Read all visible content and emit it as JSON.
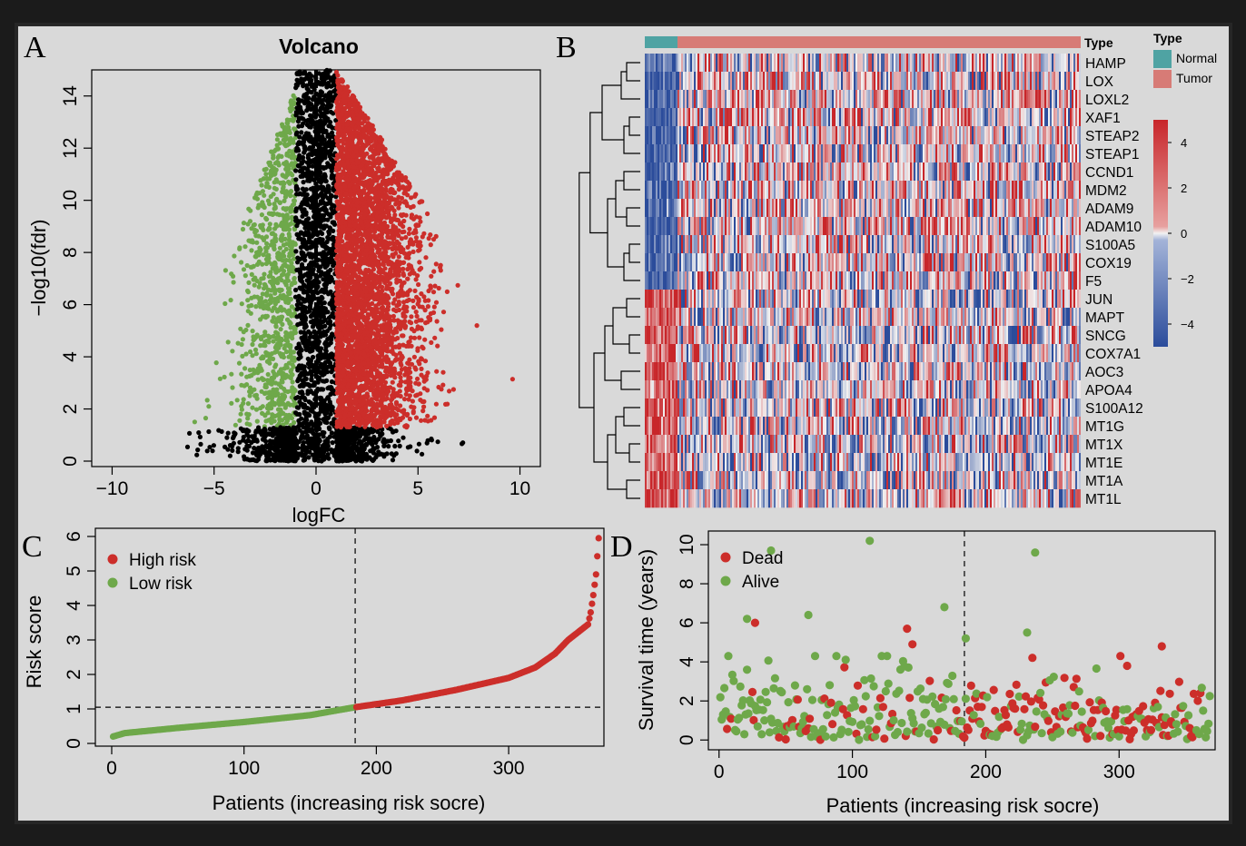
{
  "panels": {
    "A": {
      "letter": "A"
    },
    "B": {
      "letter": "B"
    },
    "C": {
      "letter": "C"
    },
    "D": {
      "letter": "D"
    }
  },
  "colors": {
    "down": "#6ea84a",
    "up": "#cc2e2a",
    "ns": "#000000",
    "high_risk": "#cc2e2a",
    "low_risk": "#6ea84a",
    "dead": "#cc2e2a",
    "alive": "#6ea84a",
    "normal": "#4fa3a3",
    "tumor": "#d77b76",
    "heat_high": "#c8262a",
    "heat_mid": "#f2f2f2",
    "heat_low": "#2b4c9b"
  },
  "chart_data": [
    {
      "id": "A",
      "type": "scatter",
      "title": "Volcano",
      "xlabel": "logFC",
      "ylabel": "−log10(fdr)",
      "xlim": [
        -11,
        11
      ],
      "ylim": [
        0,
        15
      ],
      "xticks": [
        "−10",
        "−5",
        "0",
        "5",
        "10"
      ],
      "yticks": [
        "0",
        "2",
        "4",
        "6",
        "8",
        "10",
        "12",
        "14"
      ],
      "xtick_values": [
        -10,
        -5,
        0,
        5,
        10
      ],
      "ytick_values": [
        0,
        2,
        4,
        6,
        8,
        10,
        12,
        14
      ],
      "thresholds": {
        "logfc": [
          -1,
          1
        ],
        "fdr_line_x": 0
      },
      "series": [
        {
          "group": "down",
          "x_range": [
            -6,
            -1
          ],
          "y_range": [
            1.3,
            14.3
          ],
          "approx_points": 900
        },
        {
          "group": "ns",
          "x_range": [
            -6.3,
            7.2
          ],
          "y_range": [
            0,
            15
          ],
          "approx_points": 2500
        },
        {
          "group": "up",
          "x_range": [
            1,
            10.3
          ],
          "y_range": [
            1.3,
            15
          ],
          "approx_points": 3800
        }
      ]
    },
    {
      "id": "B",
      "type": "heatmap",
      "annotation_label": "Type",
      "legend_title": "Type",
      "legend_items": [
        "Normal",
        "Tumor"
      ],
      "genes": [
        "HAMP",
        "LOX",
        "LOXL2",
        "XAF1",
        "STEAP2",
        "STEAP1",
        "CCND1",
        "MDM2",
        "ADAM9",
        "ADAM10",
        "S100A5",
        "COX19",
        "F5",
        "JUN",
        "MAPT",
        "SNCG",
        "COX7A1",
        "AOC3",
        "APOA4",
        "S100A12",
        "MT1G",
        "MT1X",
        "MT1E",
        "MT1A",
        "MT1L"
      ],
      "colorbar_ticks": [
        "4",
        "2",
        "0",
        "−2",
        "−4"
      ],
      "colorbar_values": [
        4,
        2,
        0,
        -2,
        -4
      ],
      "color_range": [
        -5,
        5
      ],
      "samples": {
        "normal_fraction": 0.075,
        "total_columns": 370
      },
      "pattern": {
        "normal_low_genes": 13,
        "normal_high_genes": 12
      }
    },
    {
      "id": "C",
      "type": "scatter",
      "xlabel": "Patients (increasing risk socre)",
      "ylabel": "Risk score",
      "xlim": [
        0,
        372
      ],
      "ylim": [
        0,
        6
      ],
      "xticks": [
        "0",
        "100",
        "200",
        "300"
      ],
      "yticks": [
        "0",
        "1",
        "2",
        "3",
        "4",
        "5",
        "6"
      ],
      "xtick_values": [
        0,
        100,
        200,
        300
      ],
      "ytick_values": [
        0,
        1,
        2,
        3,
        4,
        5,
        6
      ],
      "cutoff_x": 184,
      "cutoff_y": 1.05,
      "n_patients": 368,
      "legend": [
        "High risk",
        "Low risk"
      ],
      "curve_points": [
        [
          1,
          0.2
        ],
        [
          10,
          0.3
        ],
        [
          50,
          0.45
        ],
        [
          100,
          0.62
        ],
        [
          150,
          0.82
        ],
        [
          184,
          1.05
        ],
        [
          220,
          1.25
        ],
        [
          260,
          1.55
        ],
        [
          300,
          1.9
        ],
        [
          320,
          2.2
        ],
        [
          335,
          2.6
        ],
        [
          345,
          3.0
        ],
        [
          355,
          3.3
        ],
        [
          360,
          3.45
        ],
        [
          362,
          3.8
        ],
        [
          364,
          4.3
        ],
        [
          366,
          4.9
        ],
        [
          368,
          5.95
        ]
      ]
    },
    {
      "id": "D",
      "type": "scatter",
      "xlabel": "Patients (increasing risk socre)",
      "ylabel": "Survival time (years)",
      "xlim": [
        -8,
        372
      ],
      "ylim": [
        -0.5,
        10.7
      ],
      "xticks": [
        "0",
        "100",
        "200",
        "300"
      ],
      "yticks": [
        "0",
        "2",
        "4",
        "6",
        "8",
        "10"
      ],
      "xtick_values": [
        0,
        100,
        200,
        300
      ],
      "ytick_values": [
        0,
        2,
        4,
        6,
        8,
        10
      ],
      "cutoff_x": 184,
      "legend": [
        "Dead",
        "Alive"
      ],
      "n_patients": 368,
      "notable_points": [
        {
          "x": 113,
          "y": 10.2,
          "status": "alive"
        },
        {
          "x": 39,
          "y": 9.7,
          "status": "alive"
        },
        {
          "x": 237,
          "y": 9.6,
          "status": "alive"
        },
        {
          "x": 169,
          "y": 6.8,
          "status": "alive"
        },
        {
          "x": 67,
          "y": 6.4,
          "status": "alive"
        },
        {
          "x": 21,
          "y": 6.2,
          "status": "alive"
        },
        {
          "x": 27,
          "y": 6.0,
          "status": "dead"
        },
        {
          "x": 141,
          "y": 5.7,
          "status": "dead"
        },
        {
          "x": 231,
          "y": 5.5,
          "status": "alive"
        },
        {
          "x": 185,
          "y": 5.2,
          "status": "alive"
        },
        {
          "x": 332,
          "y": 4.8,
          "status": "dead"
        },
        {
          "x": 145,
          "y": 4.9,
          "status": "dead"
        },
        {
          "x": 306,
          "y": 3.8,
          "status": "dead"
        }
      ]
    }
  ]
}
